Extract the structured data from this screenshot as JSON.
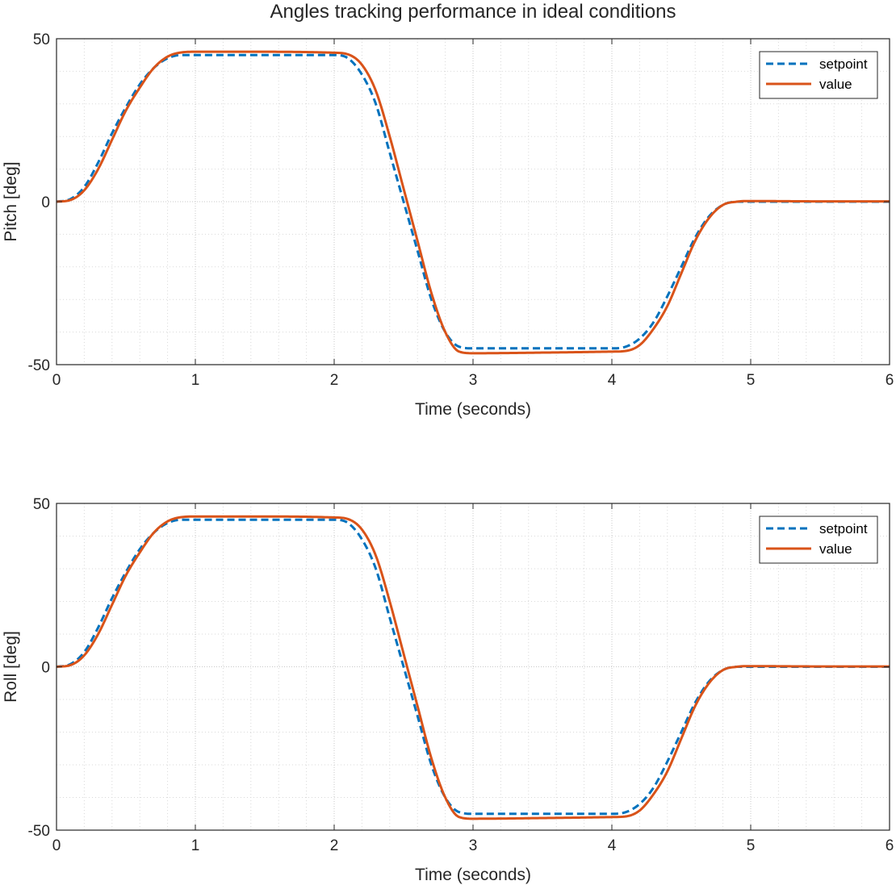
{
  "figure": {
    "title": "Angles tracking performance in ideal conditions"
  },
  "chart_data": [
    {
      "type": "line",
      "title": "Angles tracking performance in ideal conditions",
      "xlabel": "Time (seconds)",
      "ylabel": "Pitch [deg]",
      "xlim": [
        0,
        6
      ],
      "ylim": [
        -50,
        50
      ],
      "xticks": [
        0,
        1,
        2,
        3,
        4,
        5,
        6
      ],
      "yticks": [
        -50,
        0,
        50
      ],
      "xtick_labels": [
        "0",
        "1",
        "2",
        "3",
        "4",
        "5",
        "6"
      ],
      "ytick_labels": [
        "-50",
        "0",
        "50"
      ],
      "grid": true,
      "minor_grid": true,
      "legend": "top-right",
      "x": [
        0,
        0.1,
        0.2,
        0.3,
        0.4,
        0.5,
        0.6,
        0.7,
        0.8,
        0.9,
        1.0,
        1.5,
        2.0,
        2.1,
        2.2,
        2.3,
        2.4,
        2.5,
        2.6,
        2.7,
        2.8,
        2.9,
        3.0,
        3.5,
        4.0,
        4.1,
        4.2,
        4.3,
        4.4,
        4.5,
        4.6,
        4.7,
        4.8,
        4.9,
        5.0,
        5.5,
        6.0
      ],
      "series": [
        {
          "name": "setpoint",
          "color": "#0072BD",
          "style": "dashed",
          "values": [
            0,
            0.8,
            4.5,
            12,
            21,
            29,
            36,
            41,
            44,
            45,
            45,
            45,
            45,
            44,
            39,
            30,
            15,
            0,
            -15,
            -30,
            -40,
            -44.5,
            -45,
            -45,
            -45,
            -44.5,
            -42,
            -37,
            -29,
            -20,
            -11,
            -4.5,
            -1,
            0,
            0,
            0,
            0
          ]
        },
        {
          "name": "value",
          "color": "#D95319",
          "style": "solid",
          "values": [
            0,
            0.5,
            3.5,
            10,
            19,
            28,
            35,
            41,
            44.5,
            45.8,
            46,
            46,
            45.7,
            45.2,
            42,
            34,
            20,
            4,
            -12,
            -28,
            -40,
            -46,
            -46.5,
            -46.3,
            -46,
            -45.8,
            -44,
            -39,
            -32,
            -22,
            -12,
            -5,
            -1,
            0,
            0.2,
            0.1,
            0.1
          ]
        }
      ]
    },
    {
      "type": "line",
      "xlabel": "Time (seconds)",
      "ylabel": "Roll [deg]",
      "xlim": [
        0,
        6
      ],
      "ylim": [
        -50,
        50
      ],
      "xticks": [
        0,
        1,
        2,
        3,
        4,
        5,
        6
      ],
      "yticks": [
        -50,
        0,
        50
      ],
      "xtick_labels": [
        "0",
        "1",
        "2",
        "3",
        "4",
        "5",
        "6"
      ],
      "ytick_labels": [
        "-50",
        "0",
        "50"
      ],
      "grid": true,
      "minor_grid": true,
      "legend": "top-right",
      "x": [
        0,
        0.1,
        0.2,
        0.3,
        0.4,
        0.5,
        0.6,
        0.7,
        0.8,
        0.9,
        1.0,
        1.5,
        2.0,
        2.1,
        2.2,
        2.3,
        2.4,
        2.5,
        2.6,
        2.7,
        2.8,
        2.9,
        3.0,
        3.5,
        4.0,
        4.1,
        4.2,
        4.3,
        4.4,
        4.5,
        4.6,
        4.7,
        4.8,
        4.9,
        5.0,
        5.5,
        6.0
      ],
      "series": [
        {
          "name": "setpoint",
          "color": "#0072BD",
          "style": "dashed",
          "values": [
            0,
            0.8,
            4.5,
            12,
            21,
            29,
            36,
            41,
            44,
            45,
            45,
            45,
            45,
            44,
            39,
            30,
            15,
            0,
            -15,
            -30,
            -40,
            -44.5,
            -45,
            -45,
            -45,
            -44.5,
            -42,
            -37,
            -29,
            -20,
            -11,
            -4.5,
            -1,
            0,
            0,
            0,
            0
          ]
        },
        {
          "name": "value",
          "color": "#D95319",
          "style": "solid",
          "values": [
            0,
            0.5,
            3.5,
            10,
            19,
            28,
            35,
            41,
            44.5,
            45.8,
            46,
            46,
            45.7,
            45.2,
            42,
            34,
            20,
            4,
            -12,
            -28,
            -40,
            -46,
            -46.5,
            -46.3,
            -46,
            -45.8,
            -44,
            -39,
            -32,
            -22,
            -12,
            -5,
            -1,
            0,
            0.2,
            0.1,
            0.1
          ]
        }
      ]
    }
  ]
}
